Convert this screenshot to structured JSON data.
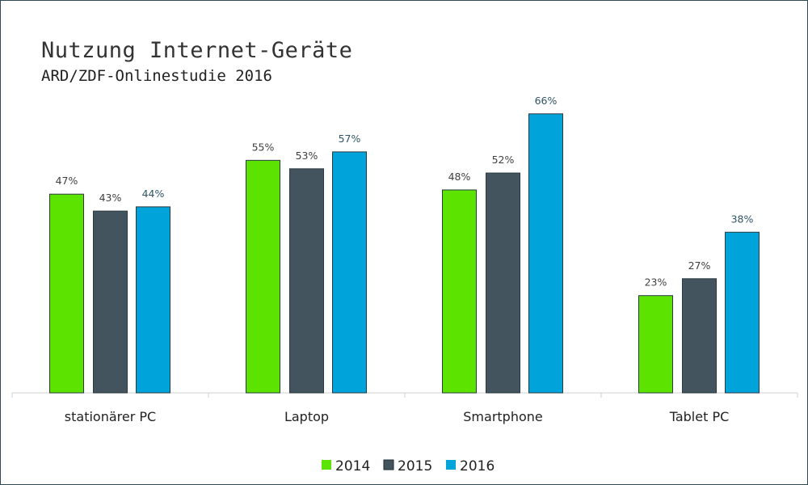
{
  "chart_data": {
    "type": "bar",
    "title": "Nutzung Internet-Geräte",
    "subtitle": "ARD/ZDF-Onlinestudie 2016",
    "categories": [
      "stationärer PC",
      "Laptop",
      "Smartphone",
      "Tablet PC"
    ],
    "series": [
      {
        "name": "2014",
        "values": [
          47,
          55,
          48,
          23
        ],
        "color": "#5ce300"
      },
      {
        "name": "2015",
        "values": [
          43,
          53,
          52,
          27
        ],
        "color": "#44545e"
      },
      {
        "name": "2016",
        "values": [
          44,
          57,
          66,
          38
        ],
        "color": "#00a3da"
      }
    ],
    "value_suffix": "%",
    "ylim": [
      0,
      66
    ],
    "grid": false,
    "legend": "bottom"
  }
}
